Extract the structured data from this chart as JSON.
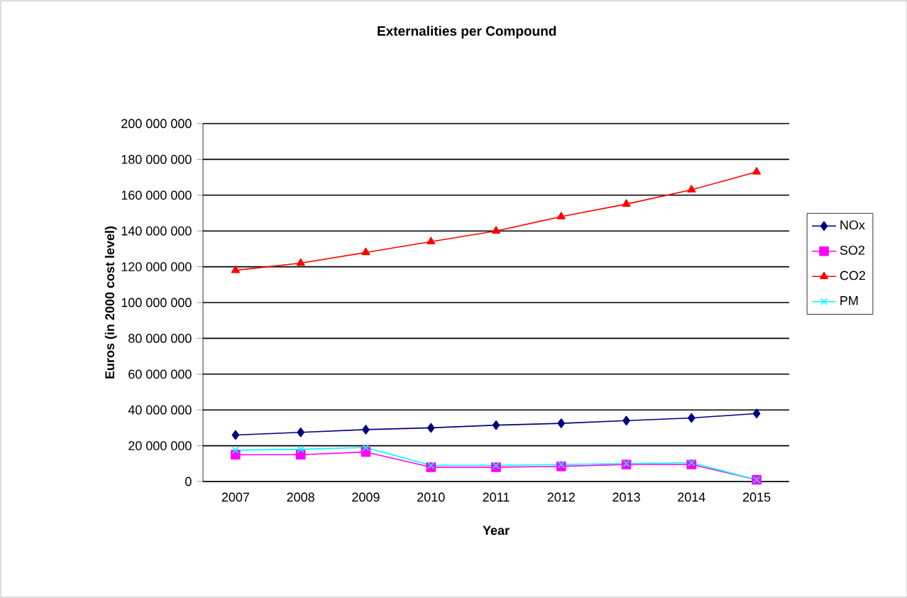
{
  "chart_data": {
    "type": "line",
    "title": "Externalities per Compound",
    "xlabel": "Year",
    "ylabel": "Euros (in 2000 cost level)",
    "categories": [
      "2007",
      "2008",
      "2009",
      "2010",
      "2011",
      "2012",
      "2013",
      "2014",
      "2015"
    ],
    "ylim": [
      0,
      200000000
    ],
    "yticks": [
      {
        "value": 0,
        "label": "0"
      },
      {
        "value": 20000000,
        "label": "20 000 000"
      },
      {
        "value": 40000000,
        "label": "40 000 000"
      },
      {
        "value": 60000000,
        "label": "60 000 000"
      },
      {
        "value": 80000000,
        "label": "80 000 000"
      },
      {
        "value": 100000000,
        "label": "100 000 000"
      },
      {
        "value": 120000000,
        "label": "120 000 000"
      },
      {
        "value": 140000000,
        "label": "140 000 000"
      },
      {
        "value": 160000000,
        "label": "160 000 000"
      },
      {
        "value": 180000000,
        "label": "180 000 000"
      },
      {
        "value": 200000000,
        "label": "200 000 000"
      }
    ],
    "grid": "y",
    "legend": "right",
    "series": [
      {
        "name": "NOx",
        "color": "#000080",
        "marker": "diamond",
        "values": [
          26000000,
          27500000,
          29000000,
          30000000,
          31500000,
          32500000,
          34000000,
          35500000,
          38000000
        ]
      },
      {
        "name": "SO2",
        "color": "#ff00ff",
        "marker": "square",
        "values": [
          15000000,
          15000000,
          16500000,
          8000000,
          8000000,
          8500000,
          9500000,
          9500000,
          1000000
        ]
      },
      {
        "name": "CO2",
        "color": "#ff0000",
        "marker": "triangle",
        "values": [
          118000000,
          122000000,
          128000000,
          134000000,
          140000000,
          148000000,
          155000000,
          163000000,
          173000000
        ]
      },
      {
        "name": "PM",
        "color": "#00ffff",
        "marker": "cross",
        "values": [
          17500000,
          18000000,
          19000000,
          9000000,
          9000000,
          9500000,
          10000000,
          10500000,
          1000000
        ]
      }
    ]
  }
}
